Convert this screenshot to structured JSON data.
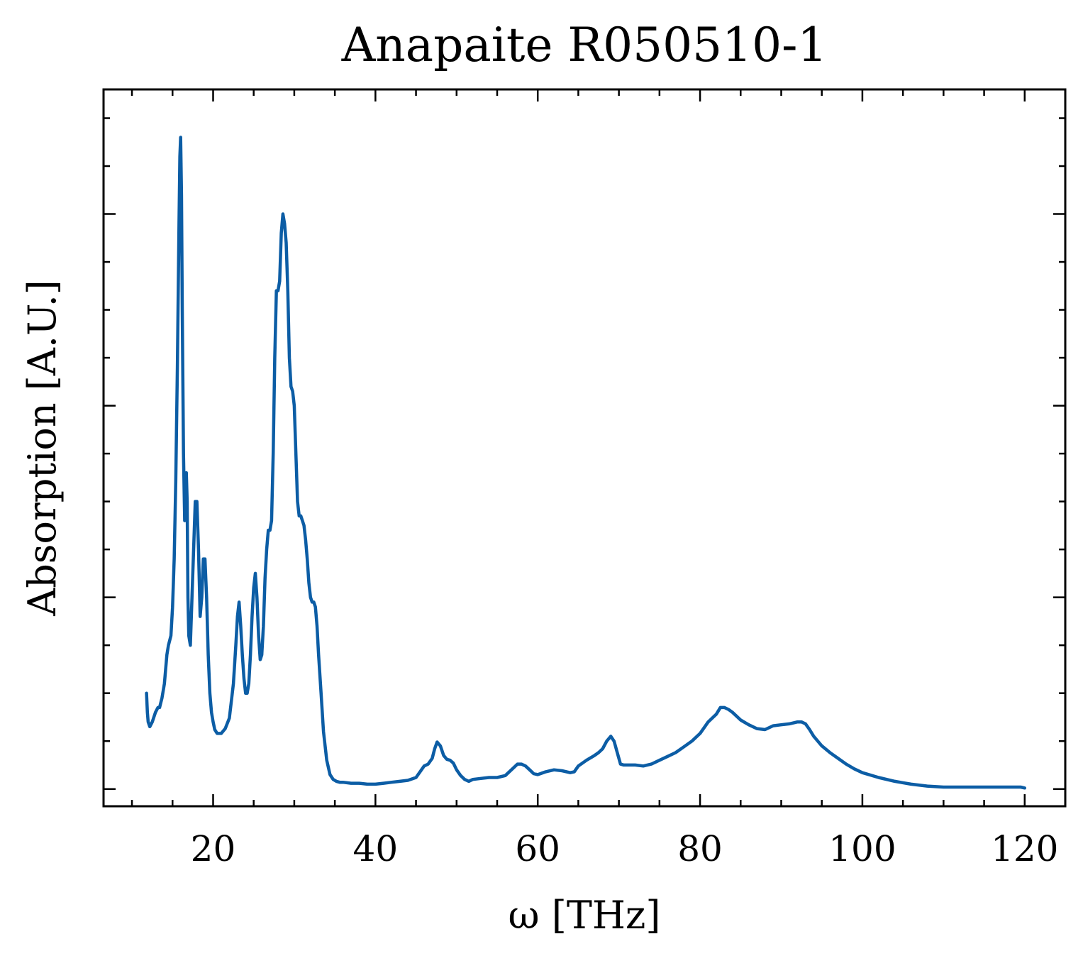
{
  "chart_data": {
    "type": "line",
    "title": "Anapaite R050510-1",
    "xlabel": "ω [THz]",
    "ylabel": "Absorption [A.U.]",
    "xlim": [
      6.5,
      125
    ],
    "ylim": [
      -0.018,
      0.73
    ],
    "x_ticks": [
      20,
      40,
      60,
      80,
      100,
      120
    ],
    "x_tick_labels": [
      "20",
      "40",
      "60",
      "80",
      "100",
      "120"
    ],
    "x_minor_step": 5,
    "y_ticks": [
      0.0,
      0.2,
      0.4,
      0.6
    ],
    "y_minor_step": 0.05,
    "y_tick_labels_shown": false,
    "grid": false,
    "legend": "none",
    "colors": {
      "series": "#0c5da5",
      "axes": "#000000",
      "background": "#ffffff"
    },
    "series": [
      {
        "color": "#0c5da5",
        "x": [
          11.8,
          11.9,
          12.0,
          12.2,
          12.5,
          12.9,
          13.2,
          13.4,
          13.7,
          14.0,
          14.3,
          14.5,
          14.8,
          15.0,
          15.2,
          15.4,
          15.6,
          15.8,
          15.9,
          16.0,
          16.1,
          16.2,
          16.35,
          16.5,
          16.7,
          16.8,
          16.9,
          17.0,
          17.2,
          17.4,
          17.6,
          17.8,
          18.0,
          18.2,
          18.4,
          18.6,
          18.8,
          19.0,
          19.2,
          19.4,
          19.6,
          19.8,
          20.0,
          20.2,
          20.5,
          21.0,
          21.5,
          22.0,
          22.5,
          22.8,
          23.0,
          23.2,
          23.4,
          23.6,
          23.8,
          24.0,
          24.2,
          24.4,
          24.6,
          24.8,
          25.0,
          25.2,
          25.4,
          25.6,
          25.8,
          26.0,
          26.2,
          26.4,
          26.6,
          26.8,
          27.0,
          27.2,
          27.4,
          27.6,
          27.8,
          28.0,
          28.2,
          28.4,
          28.6,
          28.8,
          29.0,
          29.2,
          29.4,
          29.6,
          29.8,
          30.0,
          30.2,
          30.4,
          30.6,
          30.8,
          31.0,
          31.2,
          31.4,
          31.6,
          31.8,
          32.0,
          32.2,
          32.4,
          32.6,
          32.8,
          33.0,
          33.3,
          33.6,
          34.0,
          34.4,
          34.8,
          35.2,
          35.6,
          36.0,
          37.0,
          38.0,
          39.0,
          40.0,
          41.0,
          42.0,
          43.0,
          44.0,
          45.0,
          45.5,
          46.0,
          46.5,
          47.0,
          47.3,
          47.6,
          48.0,
          48.4,
          48.8,
          49.2,
          49.6,
          50.0,
          50.5,
          51.0,
          51.5,
          52.0,
          53.0,
          54.0,
          55.0,
          56.0,
          57.0,
          57.5,
          58.0,
          58.5,
          59.0,
          59.5,
          60.0,
          61.0,
          62.0,
          63.0,
          64.0,
          64.5,
          65.0,
          66.0,
          67.0,
          67.5,
          68.0,
          68.5,
          69.0,
          69.4,
          69.8,
          70.2,
          70.6,
          71.0,
          72.0,
          73.0,
          74.0,
          75.0,
          76.0,
          77.0,
          78.0,
          79.0,
          80.0,
          81.0,
          82.0,
          82.5,
          83.0,
          83.5,
          84.0,
          85.0,
          86.0,
          87.0,
          88.0,
          89.0,
          90.0,
          91.0,
          92.0,
          92.5,
          93.0,
          93.5,
          94.0,
          95.0,
          96.0,
          97.0,
          98.0,
          99.0,
          100.0,
          102.0,
          104.0,
          106.0,
          108.0,
          110.0,
          112.0,
          114.0,
          116.0,
          118.0,
          119.5,
          120.0
        ],
        "y": [
          0.1,
          0.08,
          0.07,
          0.065,
          0.07,
          0.08,
          0.085,
          0.085,
          0.095,
          0.11,
          0.14,
          0.15,
          0.16,
          0.19,
          0.24,
          0.32,
          0.44,
          0.59,
          0.66,
          0.68,
          0.62,
          0.5,
          0.35,
          0.28,
          0.33,
          0.3,
          0.2,
          0.16,
          0.15,
          0.2,
          0.25,
          0.3,
          0.3,
          0.25,
          0.18,
          0.2,
          0.24,
          0.24,
          0.2,
          0.14,
          0.1,
          0.08,
          0.07,
          0.062,
          0.058,
          0.058,
          0.063,
          0.074,
          0.11,
          0.15,
          0.18,
          0.195,
          0.17,
          0.14,
          0.115,
          0.1,
          0.1,
          0.11,
          0.14,
          0.18,
          0.21,
          0.225,
          0.2,
          0.16,
          0.135,
          0.14,
          0.17,
          0.22,
          0.25,
          0.27,
          0.27,
          0.28,
          0.35,
          0.45,
          0.52,
          0.52,
          0.53,
          0.58,
          0.6,
          0.59,
          0.57,
          0.52,
          0.45,
          0.42,
          0.415,
          0.4,
          0.35,
          0.3,
          0.285,
          0.285,
          0.28,
          0.275,
          0.26,
          0.24,
          0.215,
          0.2,
          0.195,
          0.195,
          0.19,
          0.17,
          0.14,
          0.1,
          0.06,
          0.03,
          0.015,
          0.01,
          0.008,
          0.007,
          0.007,
          0.006,
          0.006,
          0.005,
          0.005,
          0.006,
          0.007,
          0.008,
          0.009,
          0.012,
          0.018,
          0.024,
          0.026,
          0.032,
          0.042,
          0.049,
          0.045,
          0.035,
          0.031,
          0.03,
          0.027,
          0.02,
          0.014,
          0.01,
          0.008,
          0.01,
          0.011,
          0.012,
          0.012,
          0.014,
          0.022,
          0.026,
          0.026,
          0.024,
          0.02,
          0.016,
          0.015,
          0.018,
          0.02,
          0.019,
          0.017,
          0.018,
          0.024,
          0.03,
          0.035,
          0.038,
          0.042,
          0.05,
          0.055,
          0.05,
          0.038,
          0.026,
          0.025,
          0.025,
          0.025,
          0.024,
          0.026,
          0.03,
          0.034,
          0.038,
          0.044,
          0.05,
          0.058,
          0.07,
          0.078,
          0.085,
          0.085,
          0.083,
          0.08,
          0.072,
          0.067,
          0.063,
          0.062,
          0.066,
          0.067,
          0.068,
          0.07,
          0.07,
          0.068,
          0.062,
          0.055,
          0.045,
          0.038,
          0.032,
          0.026,
          0.021,
          0.017,
          0.012,
          0.008,
          0.005,
          0.003,
          0.002,
          0.002,
          0.002,
          0.002,
          0.002,
          0.002,
          0.001
        ]
      }
    ]
  }
}
